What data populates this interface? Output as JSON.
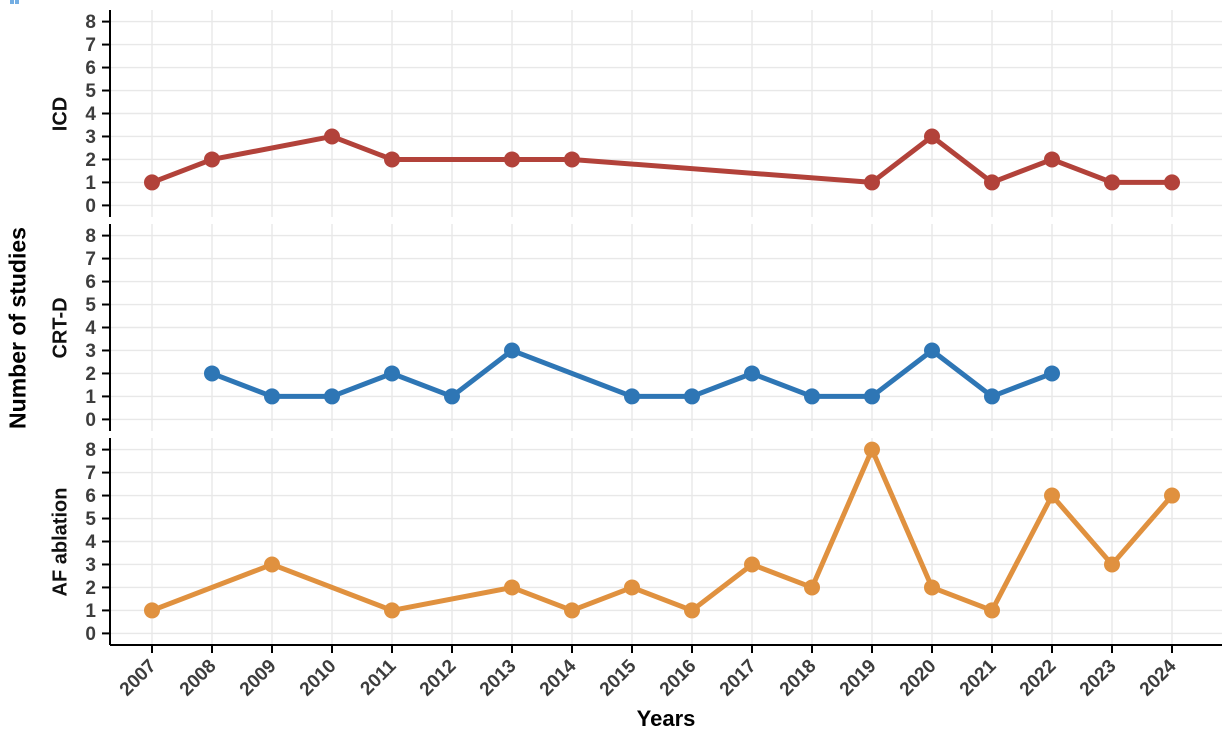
{
  "page": {
    "artifact": {
      "description": "stray light-blue quote-mark artifact at top-left corner",
      "color": "#74aee3"
    }
  },
  "chart": {
    "ylabel": "Number of studies",
    "xlabel": "Years",
    "facets": [
      {
        "label": "ICD"
      },
      {
        "label": "CRT-D"
      },
      {
        "label": "AF ablation"
      }
    ]
  },
  "chart_data": {
    "type": "line",
    "title": "",
    "xlabel": "Years",
    "ylabel": "Number of studies",
    "facet_layout": "3 stacked panels sharing x axis, strip labels on left, rotated",
    "x_categories": [
      2007,
      2008,
      2009,
      2010,
      2011,
      2012,
      2013,
      2014,
      2015,
      2016,
      2017,
      2018,
      2019,
      2020,
      2021,
      2022,
      2023,
      2024
    ],
    "yticks": [
      0,
      1,
      2,
      3,
      4,
      5,
      6,
      7,
      8
    ],
    "ylim": [
      0,
      8
    ],
    "grid": true,
    "legend_position": "none",
    "x_tick_angle_deg": 45,
    "series": [
      {
        "name": "ICD",
        "facet": "ICD",
        "color": "#b2423a",
        "points": [
          [
            2007,
            1
          ],
          [
            2008,
            2
          ],
          [
            2010,
            3
          ],
          [
            2011,
            2
          ],
          [
            2013,
            2
          ],
          [
            2014,
            2
          ],
          [
            2019,
            1
          ],
          [
            2020,
            3
          ],
          [
            2021,
            1
          ],
          [
            2022,
            2
          ],
          [
            2023,
            1
          ],
          [
            2024,
            1
          ]
        ]
      },
      {
        "name": "CRT-D",
        "facet": "CRT-D",
        "color": "#2e76b5",
        "points": [
          [
            2008,
            2
          ],
          [
            2009,
            1
          ],
          [
            2010,
            1
          ],
          [
            2011,
            2
          ],
          [
            2012,
            1
          ],
          [
            2013,
            3
          ],
          [
            2015,
            1
          ],
          [
            2016,
            1
          ],
          [
            2017,
            2
          ],
          [
            2018,
            1
          ],
          [
            2019,
            1
          ],
          [
            2020,
            3
          ],
          [
            2021,
            1
          ],
          [
            2022,
            2
          ]
        ]
      },
      {
        "name": "AF ablation",
        "facet": "AF ablation",
        "color": "#e0913f",
        "points": [
          [
            2007,
            1
          ],
          [
            2009,
            3
          ],
          [
            2011,
            1
          ],
          [
            2013,
            2
          ],
          [
            2014,
            1
          ],
          [
            2015,
            2
          ],
          [
            2016,
            1
          ],
          [
            2017,
            3
          ],
          [
            2018,
            2
          ],
          [
            2019,
            8
          ],
          [
            2020,
            2
          ],
          [
            2021,
            1
          ],
          [
            2022,
            6
          ],
          [
            2023,
            3
          ],
          [
            2024,
            6
          ]
        ]
      }
    ],
    "style": {
      "grid_color": "#e8e8e8",
      "axis_color": "#000000",
      "tick_label_color": "#3d3d3d",
      "line_width": 5,
      "point_radius": 8
    }
  }
}
